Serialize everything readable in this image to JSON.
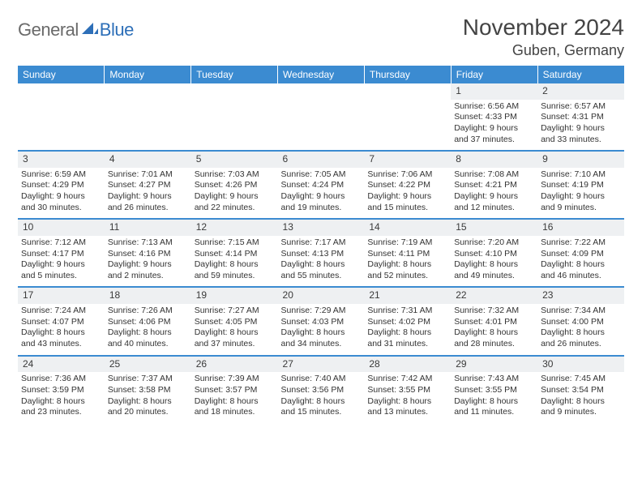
{
  "logo": {
    "text1": "General",
    "text2": "Blue"
  },
  "title": "November 2024",
  "location": "Guben, Germany",
  "colors": {
    "header_bg": "#3b8bd1",
    "header_text": "#ffffff",
    "daynum_bg": "#eef0f2",
    "row_divider": "#3b8bd1",
    "body_bg": "#ffffff",
    "text": "#333333",
    "logo_gray": "#6a6a6a",
    "logo_blue": "#2d6fb8"
  },
  "weekdays": [
    "Sunday",
    "Monday",
    "Tuesday",
    "Wednesday",
    "Thursday",
    "Friday",
    "Saturday"
  ],
  "weeks": [
    [
      {
        "n": "",
        "sr": "",
        "ss": "",
        "dl": ""
      },
      {
        "n": "",
        "sr": "",
        "ss": "",
        "dl": ""
      },
      {
        "n": "",
        "sr": "",
        "ss": "",
        "dl": ""
      },
      {
        "n": "",
        "sr": "",
        "ss": "",
        "dl": ""
      },
      {
        "n": "",
        "sr": "",
        "ss": "",
        "dl": ""
      },
      {
        "n": "1",
        "sr": "Sunrise: 6:56 AM",
        "ss": "Sunset: 4:33 PM",
        "dl": "Daylight: 9 hours and 37 minutes."
      },
      {
        "n": "2",
        "sr": "Sunrise: 6:57 AM",
        "ss": "Sunset: 4:31 PM",
        "dl": "Daylight: 9 hours and 33 minutes."
      }
    ],
    [
      {
        "n": "3",
        "sr": "Sunrise: 6:59 AM",
        "ss": "Sunset: 4:29 PM",
        "dl": "Daylight: 9 hours and 30 minutes."
      },
      {
        "n": "4",
        "sr": "Sunrise: 7:01 AM",
        "ss": "Sunset: 4:27 PM",
        "dl": "Daylight: 9 hours and 26 minutes."
      },
      {
        "n": "5",
        "sr": "Sunrise: 7:03 AM",
        "ss": "Sunset: 4:26 PM",
        "dl": "Daylight: 9 hours and 22 minutes."
      },
      {
        "n": "6",
        "sr": "Sunrise: 7:05 AM",
        "ss": "Sunset: 4:24 PM",
        "dl": "Daylight: 9 hours and 19 minutes."
      },
      {
        "n": "7",
        "sr": "Sunrise: 7:06 AM",
        "ss": "Sunset: 4:22 PM",
        "dl": "Daylight: 9 hours and 15 minutes."
      },
      {
        "n": "8",
        "sr": "Sunrise: 7:08 AM",
        "ss": "Sunset: 4:21 PM",
        "dl": "Daylight: 9 hours and 12 minutes."
      },
      {
        "n": "9",
        "sr": "Sunrise: 7:10 AM",
        "ss": "Sunset: 4:19 PM",
        "dl": "Daylight: 9 hours and 9 minutes."
      }
    ],
    [
      {
        "n": "10",
        "sr": "Sunrise: 7:12 AM",
        "ss": "Sunset: 4:17 PM",
        "dl": "Daylight: 9 hours and 5 minutes."
      },
      {
        "n": "11",
        "sr": "Sunrise: 7:13 AM",
        "ss": "Sunset: 4:16 PM",
        "dl": "Daylight: 9 hours and 2 minutes."
      },
      {
        "n": "12",
        "sr": "Sunrise: 7:15 AM",
        "ss": "Sunset: 4:14 PM",
        "dl": "Daylight: 8 hours and 59 minutes."
      },
      {
        "n": "13",
        "sr": "Sunrise: 7:17 AM",
        "ss": "Sunset: 4:13 PM",
        "dl": "Daylight: 8 hours and 55 minutes."
      },
      {
        "n": "14",
        "sr": "Sunrise: 7:19 AM",
        "ss": "Sunset: 4:11 PM",
        "dl": "Daylight: 8 hours and 52 minutes."
      },
      {
        "n": "15",
        "sr": "Sunrise: 7:20 AM",
        "ss": "Sunset: 4:10 PM",
        "dl": "Daylight: 8 hours and 49 minutes."
      },
      {
        "n": "16",
        "sr": "Sunrise: 7:22 AM",
        "ss": "Sunset: 4:09 PM",
        "dl": "Daylight: 8 hours and 46 minutes."
      }
    ],
    [
      {
        "n": "17",
        "sr": "Sunrise: 7:24 AM",
        "ss": "Sunset: 4:07 PM",
        "dl": "Daylight: 8 hours and 43 minutes."
      },
      {
        "n": "18",
        "sr": "Sunrise: 7:26 AM",
        "ss": "Sunset: 4:06 PM",
        "dl": "Daylight: 8 hours and 40 minutes."
      },
      {
        "n": "19",
        "sr": "Sunrise: 7:27 AM",
        "ss": "Sunset: 4:05 PM",
        "dl": "Daylight: 8 hours and 37 minutes."
      },
      {
        "n": "20",
        "sr": "Sunrise: 7:29 AM",
        "ss": "Sunset: 4:03 PM",
        "dl": "Daylight: 8 hours and 34 minutes."
      },
      {
        "n": "21",
        "sr": "Sunrise: 7:31 AM",
        "ss": "Sunset: 4:02 PM",
        "dl": "Daylight: 8 hours and 31 minutes."
      },
      {
        "n": "22",
        "sr": "Sunrise: 7:32 AM",
        "ss": "Sunset: 4:01 PM",
        "dl": "Daylight: 8 hours and 28 minutes."
      },
      {
        "n": "23",
        "sr": "Sunrise: 7:34 AM",
        "ss": "Sunset: 4:00 PM",
        "dl": "Daylight: 8 hours and 26 minutes."
      }
    ],
    [
      {
        "n": "24",
        "sr": "Sunrise: 7:36 AM",
        "ss": "Sunset: 3:59 PM",
        "dl": "Daylight: 8 hours and 23 minutes."
      },
      {
        "n": "25",
        "sr": "Sunrise: 7:37 AM",
        "ss": "Sunset: 3:58 PM",
        "dl": "Daylight: 8 hours and 20 minutes."
      },
      {
        "n": "26",
        "sr": "Sunrise: 7:39 AM",
        "ss": "Sunset: 3:57 PM",
        "dl": "Daylight: 8 hours and 18 minutes."
      },
      {
        "n": "27",
        "sr": "Sunrise: 7:40 AM",
        "ss": "Sunset: 3:56 PM",
        "dl": "Daylight: 8 hours and 15 minutes."
      },
      {
        "n": "28",
        "sr": "Sunrise: 7:42 AM",
        "ss": "Sunset: 3:55 PM",
        "dl": "Daylight: 8 hours and 13 minutes."
      },
      {
        "n": "29",
        "sr": "Sunrise: 7:43 AM",
        "ss": "Sunset: 3:55 PM",
        "dl": "Daylight: 8 hours and 11 minutes."
      },
      {
        "n": "30",
        "sr": "Sunrise: 7:45 AM",
        "ss": "Sunset: 3:54 PM",
        "dl": "Daylight: 8 hours and 9 minutes."
      }
    ]
  ]
}
